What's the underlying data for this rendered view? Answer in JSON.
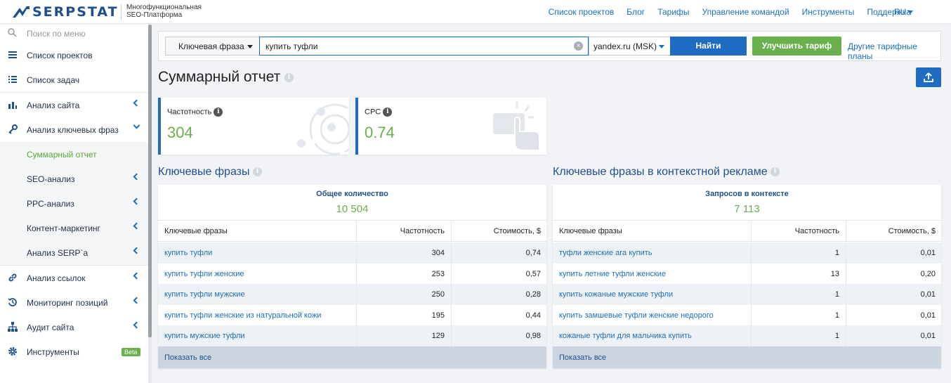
{
  "header": {
    "logo_text": "SERPSTAT",
    "logo_sub_line1": "Многофункциональная",
    "logo_sub_line2": "SEO-Платформа",
    "nav": [
      "Список проектов",
      "Блог",
      "Тарифы",
      "Управление командой",
      "Инструменты",
      "Поддержка"
    ],
    "lang": "RU"
  },
  "sidebar": {
    "search_placeholder": "Поиск по меню",
    "items": [
      {
        "label": "Список проектов",
        "icon": "list-icon"
      },
      {
        "label": "Список задач",
        "icon": "tasks-icon"
      },
      {
        "label": "Анализ сайта",
        "icon": "site-analysis-icon"
      },
      {
        "label": "Анализ ключевых фраз",
        "icon": "key-icon"
      },
      {
        "label": "Суммарный отчет"
      },
      {
        "label": "SEO-анализ"
      },
      {
        "label": "PPC-анализ"
      },
      {
        "label": "Контент-маркетинг"
      },
      {
        "label": "Анализ SERP`a"
      },
      {
        "label": "Анализ ссылок",
        "icon": "link-icon"
      },
      {
        "label": "Мониторинг позиций",
        "icon": "history-icon"
      },
      {
        "label": "Аудит сайта",
        "icon": "sitemap-icon"
      },
      {
        "label": "Инструменты",
        "icon": "gear-icon",
        "badge": "Beta"
      }
    ]
  },
  "search": {
    "type_label": "Ключевая фраза",
    "query": "купить туфли",
    "db_label": "yandex.ru (MSK)",
    "find_label": "Найти",
    "upgrade_label": "Улучшить тариф",
    "other_plans": "Другие тарифные планы"
  },
  "page_title": "Суммарный отчет",
  "metrics": [
    {
      "label": "Частотность",
      "value": "304"
    },
    {
      "label": "CPC",
      "value": "0.74"
    }
  ],
  "organic": {
    "title": "Ключевые фразы",
    "summary_label": "Общее количество",
    "summary_value": "10 504",
    "columns": [
      "Ключевые фразы",
      "Частотность",
      "Стоимость, $"
    ],
    "rows": [
      [
        "купить туфли",
        "304",
        "0,74"
      ],
      [
        "купить туфли женские",
        "253",
        "0,57"
      ],
      [
        "купить туфли мужские",
        "250",
        "0,28"
      ],
      [
        "купить туфли женские из натуральной кожи",
        "195",
        "0,44"
      ],
      [
        "купить мужские туфли",
        "129",
        "0,98"
      ]
    ],
    "show_all": "Показать все"
  },
  "ppc": {
    "title": "Ключевые фразы в контекстной рекламе",
    "summary_label": "Запросов в контексте",
    "summary_value": "7 113",
    "columns": [
      "Ключевые фразы",
      "Частотность",
      "Стоимость, $"
    ],
    "rows": [
      [
        "туфли женские ага купить",
        "1",
        "0,01"
      ],
      [
        "купить летние туфли женские",
        "13",
        "0,20"
      ],
      [
        "купить кожаные мужские туфли",
        "1",
        "0,01"
      ],
      [
        "купить замшевые туфли женские недорого",
        "1",
        "0,01"
      ],
      [
        "кожаные туфли для мальчика купить",
        "1",
        "0,01"
      ]
    ],
    "show_all": "Показать все"
  }
}
